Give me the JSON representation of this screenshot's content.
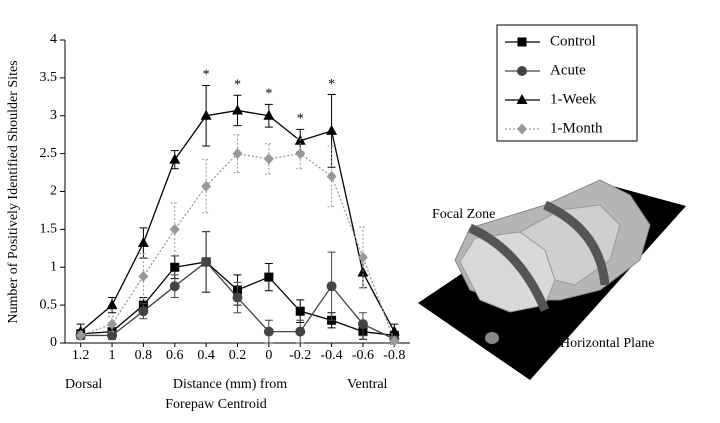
{
  "chart_data": {
    "type": "line",
    "y_label": "Number of Positively Identified Shoulder Sites",
    "x_label_lines": [
      "Distance (mm) from",
      "Forepaw Centroid"
    ],
    "x_end_labels": [
      "Dorsal",
      "Ventral"
    ],
    "categories": [
      "1.2",
      "1",
      "0.8",
      "0.6",
      "0.4",
      "0.2",
      "0",
      "-0.2",
      "-0.4",
      "-0.6",
      "-0.8"
    ],
    "ylim": [
      0,
      4
    ],
    "yticks": [
      0,
      0.5,
      1,
      1.5,
      2,
      2.5,
      3,
      3.5,
      4
    ],
    "series": [
      {
        "name": "Control",
        "color": "#000000",
        "marker": "square",
        "dash": "solid",
        "values": [
          0.12,
          0.15,
          0.5,
          1.0,
          1.07,
          0.7,
          0.87,
          0.42,
          0.3,
          0.15,
          0.1
        ],
        "errors": [
          0.05,
          0.1,
          0.1,
          0.15,
          0.4,
          0.2,
          0.18,
          0.15,
          0.1,
          0.1,
          0.05
        ]
      },
      {
        "name": "Acute",
        "color": "#444444",
        "marker": "circle",
        "dash": "solid",
        "values": [
          0.1,
          0.1,
          0.42,
          0.75,
          1.07,
          0.6,
          0.15,
          0.15,
          0.75,
          0.25,
          0.05
        ],
        "errors": [
          0.05,
          0.05,
          0.1,
          0.15,
          0.4,
          0.2,
          0.15,
          0.15,
          0.45,
          0.15,
          0.05
        ]
      },
      {
        "name": "1-Week",
        "color": "#000000",
        "marker": "triangle",
        "dash": "solid",
        "values": [
          0.15,
          0.5,
          1.32,
          2.42,
          3.0,
          3.07,
          3.0,
          2.67,
          2.8,
          0.93,
          0.15
        ],
        "errors": [
          0.1,
          0.1,
          0.2,
          0.12,
          0.4,
          0.2,
          0.15,
          0.15,
          0.48,
          0.2,
          0.1
        ]
      },
      {
        "name": "1-Month",
        "color": "#999999",
        "marker": "diamond",
        "dash": "dotted",
        "values": [
          0.1,
          0.25,
          0.88,
          1.5,
          2.07,
          2.5,
          2.43,
          2.5,
          2.2,
          1.13,
          0.03
        ],
        "errors": [
          0.05,
          0.1,
          0.3,
          0.35,
          0.35,
          0.25,
          0.2,
          0.2,
          0.4,
          0.4,
          0.05
        ]
      }
    ],
    "annotations": [
      {
        "text": "*",
        "x": "0.4"
      },
      {
        "text": "*",
        "x": "0.2"
      },
      {
        "text": "*",
        "x": "0"
      },
      {
        "text": "*",
        "x": "-0.2"
      },
      {
        "text": "*",
        "x": "-0.4"
      }
    ],
    "inset_labels": [
      "Focal Zone",
      "Horizontal Plane"
    ]
  }
}
